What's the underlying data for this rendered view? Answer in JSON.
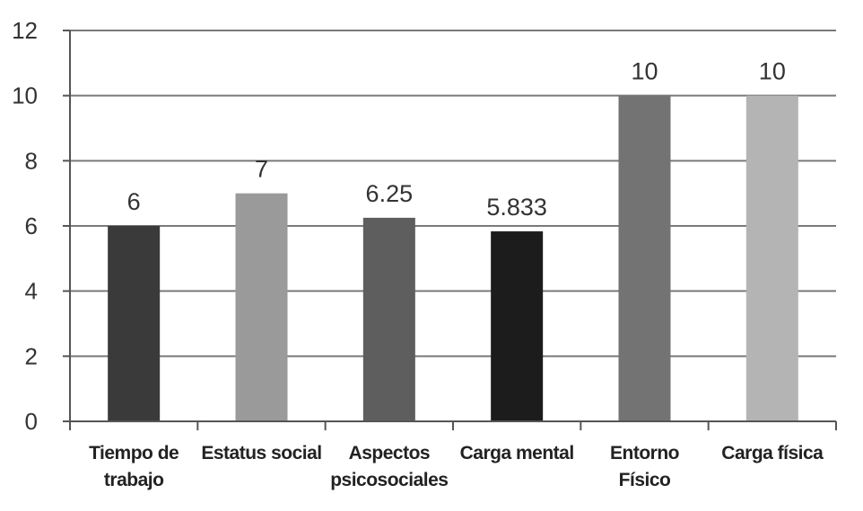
{
  "chart_data": {
    "type": "bar",
    "title": "",
    "xlabel": "",
    "ylabel": "",
    "ylim": [
      0,
      12
    ],
    "yticks": [
      "0",
      "2",
      "4",
      "6",
      "8",
      "10",
      "12"
    ],
    "grid": true,
    "categories": [
      [
        "Tiempo de",
        "trabajo"
      ],
      [
        "Estatus social"
      ],
      [
        "Aspectos",
        "psicosociales"
      ],
      [
        "Carga mental"
      ],
      [
        "Entorno",
        "Físico"
      ],
      [
        "Carga física"
      ]
    ],
    "values": [
      6,
      7,
      6.25,
      5.833,
      10,
      10
    ],
    "value_labels": [
      "6",
      "7",
      "6.25",
      "5.833",
      "10",
      "10"
    ],
    "colors": [
      "#3a3a3a",
      "#9a9a9a",
      "#5e5e5e",
      "#1c1c1c",
      "#737373",
      "#b4b4b4"
    ]
  }
}
